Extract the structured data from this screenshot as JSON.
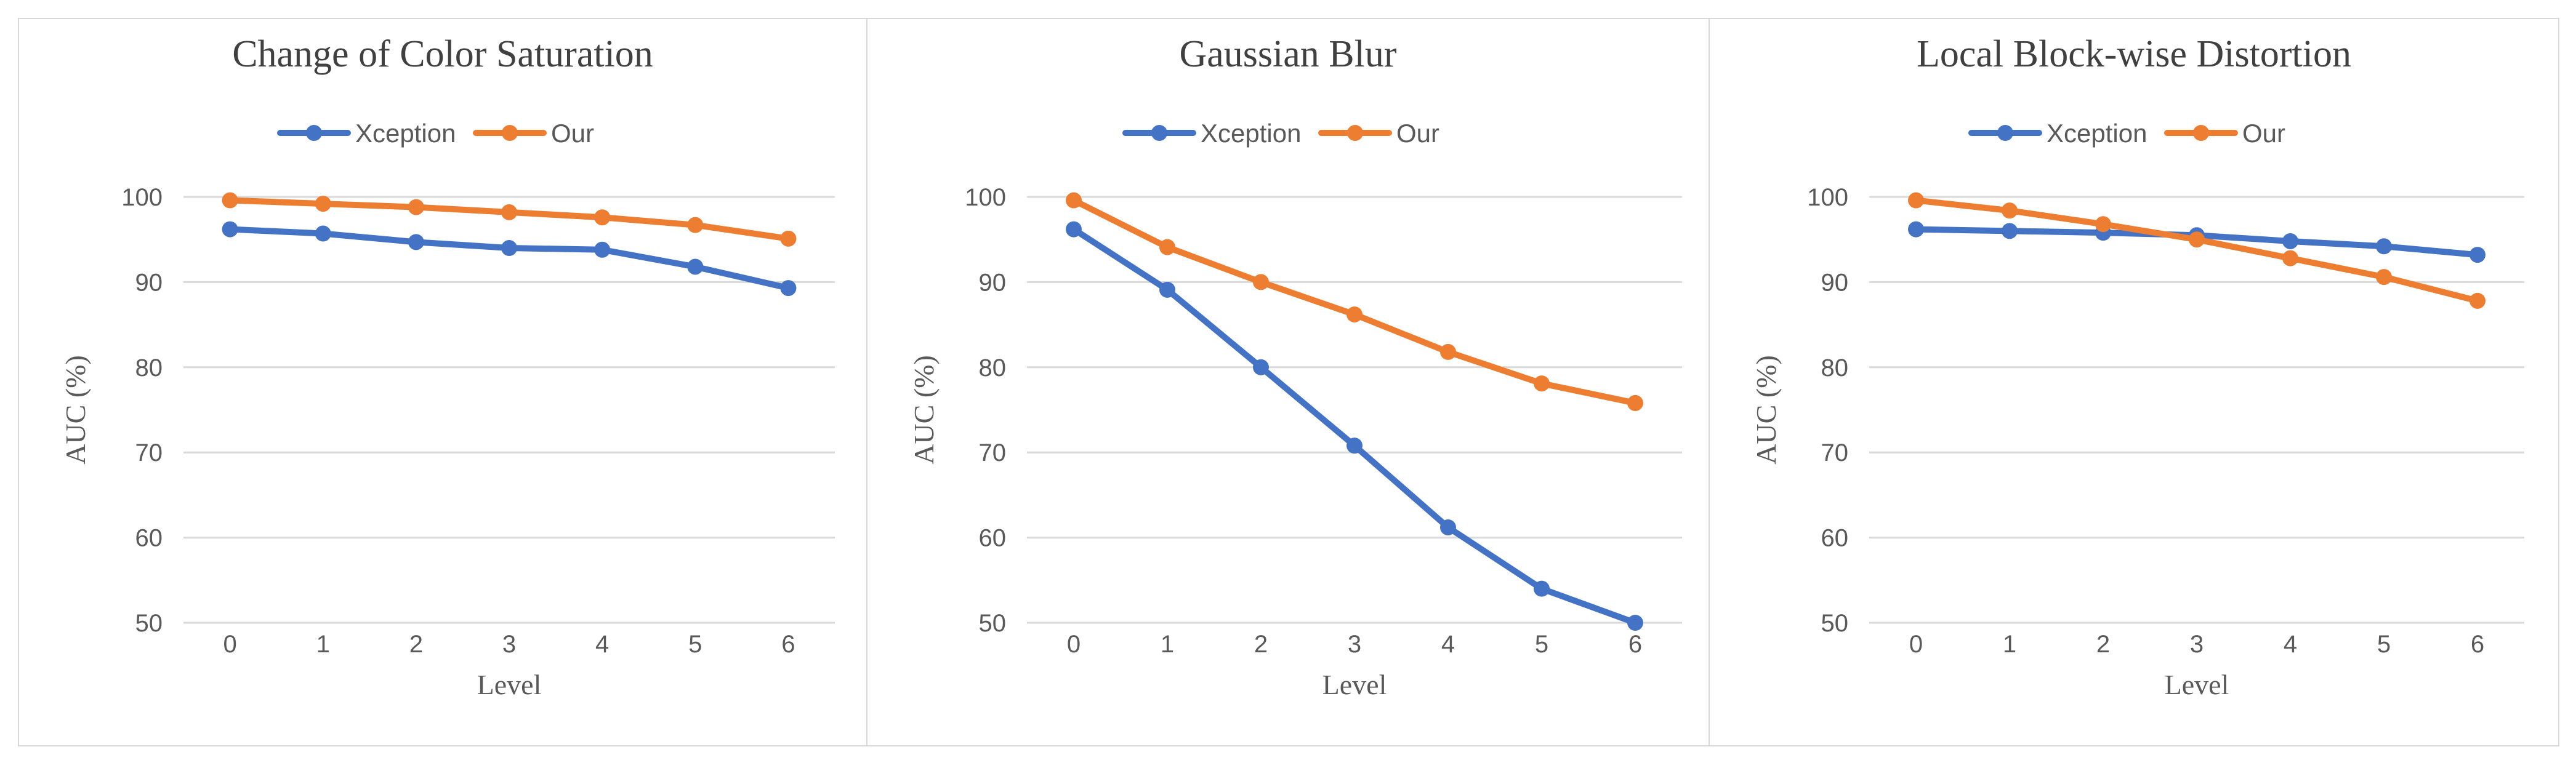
{
  "chart_data": [
    {
      "type": "line",
      "title": "Change of Color Saturation",
      "xlabel": "Level",
      "ylabel": "AUC (%)",
      "x": [
        0,
        1,
        2,
        3,
        4,
        5,
        6
      ],
      "ylim": [
        50,
        100
      ],
      "yticks": [
        50,
        60,
        70,
        80,
        90,
        100
      ],
      "grid": true,
      "legend_position": "top",
      "series": [
        {
          "name": "Xception",
          "color": "#4472C4",
          "values": [
            96.2,
            95.7,
            94.7,
            94.0,
            93.8,
            91.8,
            89.3
          ]
        },
        {
          "name": "Our",
          "color": "#ED7D31",
          "values": [
            99.6,
            99.2,
            98.8,
            98.2,
            97.6,
            96.7,
            95.1
          ]
        }
      ]
    },
    {
      "type": "line",
      "title": "Gaussian Blur",
      "xlabel": "Level",
      "ylabel": "AUC (%)",
      "x": [
        0,
        1,
        2,
        3,
        4,
        5,
        6
      ],
      "ylim": [
        50,
        100
      ],
      "yticks": [
        50,
        60,
        70,
        80,
        90,
        100
      ],
      "grid": true,
      "legend_position": "top",
      "series": [
        {
          "name": "Xception",
          "color": "#4472C4",
          "values": [
            96.2,
            89.1,
            80.0,
            70.8,
            61.2,
            54.0,
            50.0
          ]
        },
        {
          "name": "Our",
          "color": "#ED7D31",
          "values": [
            99.6,
            94.1,
            90.0,
            86.2,
            81.8,
            78.1,
            75.8
          ]
        }
      ]
    },
    {
      "type": "line",
      "title": "Local Block-wise Distortion",
      "xlabel": "Level",
      "ylabel": "AUC (%)",
      "x": [
        0,
        1,
        2,
        3,
        4,
        5,
        6
      ],
      "ylim": [
        50,
        100
      ],
      "yticks": [
        50,
        60,
        70,
        80,
        90,
        100
      ],
      "grid": true,
      "legend_position": "top",
      "series": [
        {
          "name": "Xception",
          "color": "#4472C4",
          "values": [
            96.2,
            96.0,
            95.8,
            95.5,
            94.8,
            94.2,
            93.2
          ]
        },
        {
          "name": "Our",
          "color": "#ED7D31",
          "values": [
            99.6,
            98.4,
            96.8,
            95.0,
            92.8,
            90.6,
            87.8
          ]
        }
      ]
    }
  ]
}
